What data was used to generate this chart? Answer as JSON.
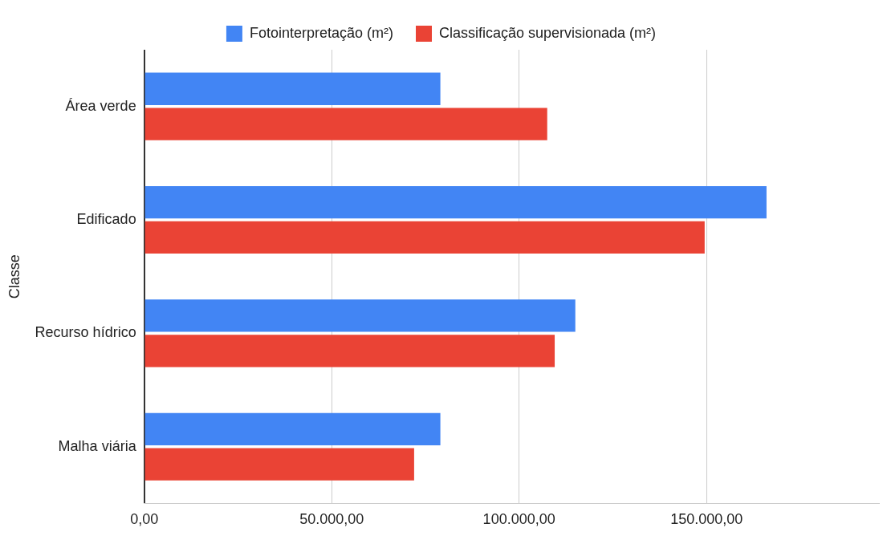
{
  "chart_data": {
    "type": "bar",
    "orientation": "horizontal",
    "ylabel": "Classe",
    "categories": [
      "Área verde",
      "Edificado",
      "Recurso hídrico",
      "Malha viária"
    ],
    "series": [
      {
        "name": "Fotointerpretação (m²)",
        "color": "#4285f4",
        "values": [
          79000,
          166000,
          115000,
          79000
        ]
      },
      {
        "name": "Classificação supervisionada (m²)",
        "color": "#ea4335",
        "values": [
          107500,
          149500,
          109500,
          72000
        ]
      }
    ],
    "xlim": [
      0,
      196000
    ],
    "xticks": [
      {
        "value": 0,
        "label": "0,00"
      },
      {
        "value": 50000,
        "label": "50.000,00"
      },
      {
        "value": 100000,
        "label": "100.000,00"
      },
      {
        "value": 150000,
        "label": "150.000,00"
      }
    ],
    "grid": "x",
    "legend": "top"
  }
}
